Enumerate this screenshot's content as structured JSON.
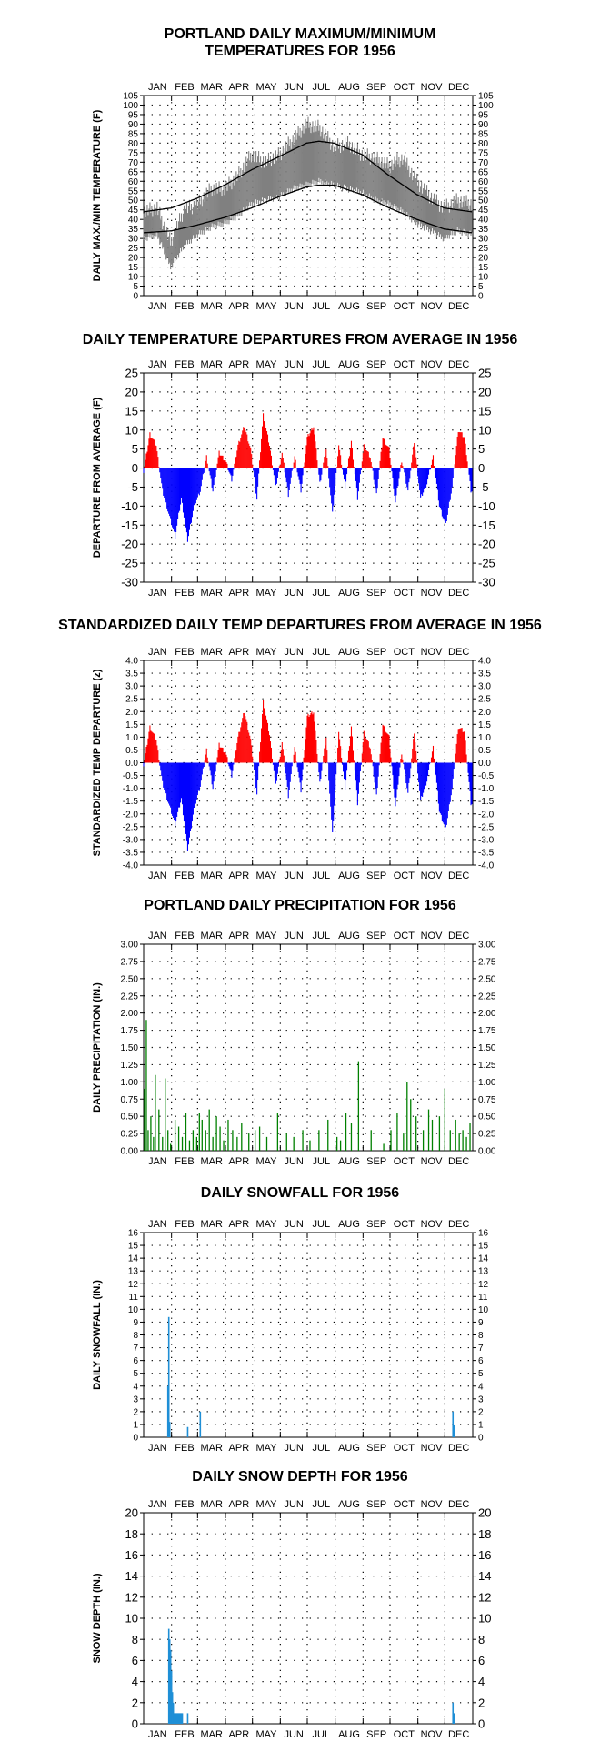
{
  "months": [
    "JAN",
    "FEB",
    "MAR",
    "APR",
    "MAY",
    "JUN",
    "JUL",
    "AUG",
    "SEP",
    "OCT",
    "NOV",
    "DEC"
  ],
  "colors": {
    "temp_band": "#808080",
    "normal_line": "#000000",
    "above": "#ff0000",
    "below": "#0000ff",
    "precip": "#008000",
    "snow": "#1f8fd6",
    "grid": "#000000"
  },
  "chart_data": [
    {
      "type": "area",
      "title": "PORTLAND DAILY MAXIMUM/MINIMUM TEMPERATURES FOR 1956",
      "title_lines": [
        "PORTLAND DAILY MAXIMUM/MINIMUM",
        "TEMPERATURES FOR 1956"
      ],
      "ylabel": "DAILY MAX./MIN TEMPERATURE (F)",
      "ylim": [
        0,
        105
      ],
      "yticks": [
        0,
        5,
        10,
        15,
        20,
        25,
        30,
        35,
        40,
        45,
        50,
        55,
        60,
        65,
        70,
        75,
        80,
        85,
        90,
        95,
        100,
        105
      ],
      "x": "day of year 1-366",
      "series": [
        {
          "role": "daily max/min band",
          "x": [
            1,
            16,
            31,
            46,
            61,
            76,
            91,
            106,
            121,
            136,
            152,
            167,
            182,
            197,
            213,
            228,
            244,
            259,
            274,
            289,
            305,
            320,
            335,
            350,
            366
          ],
          "max": [
            44,
            46,
            28,
            45,
            48,
            56,
            56,
            63,
            74,
            70,
            74,
            82,
            90,
            88,
            78,
            80,
            74,
            72,
            68,
            72,
            60,
            52,
            46,
            50,
            48
          ],
          "min": [
            30,
            32,
            15,
            26,
            32,
            36,
            38,
            42,
            48,
            50,
            52,
            56,
            58,
            60,
            58,
            56,
            54,
            50,
            48,
            44,
            38,
            34,
            30,
            34,
            32
          ]
        },
        {
          "role": "normal max",
          "x": [
            1,
            32,
            60,
            91,
            121,
            152,
            182,
            196,
            213,
            244,
            274,
            305,
            335,
            366
          ],
          "values": [
            44,
            46,
            51,
            58,
            66,
            73,
            80,
            81,
            80,
            74,
            63,
            53,
            46,
            44
          ]
        },
        {
          "role": "normal min",
          "x": [
            1,
            32,
            60,
            91,
            121,
            152,
            182,
            196,
            213,
            244,
            274,
            305,
            335,
            366
          ],
          "values": [
            33,
            34,
            37,
            41,
            46,
            52,
            57,
            58,
            58,
            53,
            46,
            40,
            35,
            33
          ]
        }
      ]
    },
    {
      "type": "bar",
      "title": "DAILY TEMPERATURE DEPARTURES FROM AVERAGE IN 1956",
      "ylabel": "DEPARTURE FROM AVERAGE (F)",
      "ylim": [
        -30,
        25
      ],
      "yticks": [
        -30,
        -25,
        -20,
        -15,
        -10,
        -5,
        0,
        5,
        10,
        15,
        20,
        25
      ],
      "x": [
        1,
        8,
        15,
        22,
        29,
        36,
        43,
        50,
        57,
        64,
        71,
        78,
        85,
        92,
        99,
        106,
        113,
        120,
        127,
        134,
        141,
        148,
        155,
        162,
        169,
        176,
        183,
        190,
        197,
        204,
        211,
        218,
        225,
        232,
        239,
        246,
        253,
        260,
        267,
        274,
        281,
        288,
        295,
        302,
        309,
        316,
        323,
        330,
        337,
        344,
        351,
        358,
        365
      ],
      "values": [
        -1,
        9,
        6,
        -6,
        -12,
        -18,
        -8,
        -19,
        -10,
        -6,
        3,
        -6,
        4,
        2,
        -3,
        6,
        11,
        5,
        -8,
        14,
        6,
        -5,
        4,
        -7,
        3,
        -6,
        8,
        11,
        -4,
        5,
        -12,
        6,
        -5,
        7,
        -8,
        6,
        3,
        -7,
        8,
        5,
        -9,
        2,
        -6,
        7,
        -8,
        -4,
        3,
        -10,
        -15,
        -5,
        10,
        8,
        -6
      ]
    },
    {
      "type": "bar",
      "title": "STANDARDIZED DAILY TEMP DEPARTURES FROM AVERAGE IN 1956",
      "ylabel": "STANDARDIZED TEMP DEPARTURE (z)",
      "ylim": [
        -4.0,
        4.0
      ],
      "yticks": [
        -4.0,
        -3.5,
        -3.0,
        -2.5,
        -2.0,
        -1.5,
        -1.0,
        -0.5,
        0.0,
        0.5,
        1.0,
        1.5,
        2.0,
        2.5,
        3.0,
        3.5,
        4.0
      ],
      "x": [
        1,
        8,
        15,
        22,
        29,
        36,
        43,
        50,
        57,
        64,
        71,
        78,
        85,
        92,
        99,
        106,
        113,
        120,
        127,
        134,
        141,
        148,
        155,
        162,
        169,
        176,
        183,
        190,
        197,
        204,
        211,
        218,
        225,
        232,
        239,
        246,
        253,
        260,
        267,
        274,
        281,
        288,
        295,
        302,
        309,
        316,
        323,
        330,
        337,
        344,
        351,
        358,
        365
      ],
      "values": [
        -0.1,
        1.4,
        0.9,
        -0.8,
        -1.6,
        -2.4,
        -1.4,
        -3.4,
        -1.8,
        -0.9,
        0.5,
        -1.0,
        0.7,
        0.4,
        -0.5,
        1.0,
        2.0,
        0.9,
        -1.2,
        2.4,
        1.1,
        -0.9,
        0.8,
        -1.3,
        0.6,
        -1.1,
        1.8,
        2.0,
        -0.8,
        1.0,
        -2.8,
        1.2,
        -1.0,
        1.4,
        -1.6,
        1.2,
        0.6,
        -1.3,
        1.5,
        1.0,
        -1.7,
        0.4,
        -1.2,
        1.2,
        -1.5,
        -0.7,
        0.6,
        -1.9,
        -2.6,
        -1.0,
        1.4,
        1.2,
        -1.6
      ]
    },
    {
      "type": "bar",
      "title": "PORTLAND DAILY PRECIPITATION FOR 1956",
      "ylabel": "DAILY PRECIPITATION (IN.)",
      "ylim": [
        0,
        3.0
      ],
      "yticks": [
        0.0,
        0.25,
        0.5,
        0.75,
        1.0,
        1.25,
        1.5,
        1.75,
        2.0,
        2.25,
        2.5,
        2.75,
        3.0
      ],
      "x": [
        2,
        4,
        6,
        9,
        12,
        14,
        18,
        22,
        25,
        28,
        31,
        36,
        40,
        44,
        48,
        52,
        56,
        60,
        63,
        66,
        70,
        74,
        78,
        82,
        86,
        90,
        95,
        100,
        105,
        110,
        118,
        125,
        130,
        138,
        150,
        160,
        168,
        178,
        186,
        196,
        206,
        216,
        220,
        226,
        232,
        240,
        254,
        268,
        276,
        283,
        290,
        294,
        298,
        304,
        312,
        318,
        322,
        330,
        336,
        342,
        348,
        352,
        356,
        360,
        364
      ],
      "values": [
        0.9,
        1.9,
        0.3,
        0.5,
        0.2,
        1.1,
        0.6,
        0.2,
        1.05,
        0.3,
        0.1,
        0.45,
        0.35,
        0.2,
        0.55,
        0.15,
        0.3,
        0.2,
        0.55,
        0.45,
        0.3,
        0.6,
        0.2,
        0.5,
        0.35,
        0.15,
        0.45,
        0.3,
        0.2,
        0.4,
        0.25,
        0.3,
        0.35,
        0.2,
        0.55,
        0.25,
        0.2,
        0.3,
        0.15,
        0.3,
        0.45,
        0.2,
        0.15,
        0.55,
        0.4,
        1.3,
        0.3,
        0.1,
        0.3,
        0.55,
        0.25,
        1.0,
        0.75,
        0.5,
        0.3,
        0.6,
        0.45,
        0.5,
        0.9,
        0.3,
        0.45,
        0.25,
        0.3,
        0.2,
        0.4
      ]
    },
    {
      "type": "bar",
      "title": "DAILY SNOWFALL FOR 1956",
      "ylabel": "DAILY SNOWFALL (IN.)",
      "ylim": [
        0,
        16
      ],
      "yticks": [
        0,
        1,
        2,
        3,
        4,
        5,
        6,
        7,
        8,
        9,
        10,
        11,
        12,
        13,
        14,
        15,
        16
      ],
      "x": [
        28,
        29,
        30,
        50,
        64,
        345,
        346
      ],
      "values": [
        4.0,
        9.4,
        1.2,
        0.8,
        2.0,
        2.0,
        1.0
      ]
    },
    {
      "type": "bar",
      "title": "DAILY SNOW DEPTH FOR 1956",
      "ylabel": "SNOW DEPTH (IN.)",
      "ylim": [
        0,
        20
      ],
      "yticks": [
        0,
        2,
        4,
        6,
        8,
        10,
        12,
        14,
        16,
        18,
        20
      ],
      "x": [
        29,
        30,
        31,
        32,
        33,
        34,
        35,
        36,
        37,
        38,
        39,
        40,
        41,
        42,
        43,
        44,
        50,
        345,
        346
      ],
      "values": [
        9,
        8,
        7,
        5,
        3,
        2,
        1,
        1,
        1,
        1,
        1,
        1,
        1,
        1,
        1,
        1,
        1,
        2,
        1
      ]
    }
  ]
}
